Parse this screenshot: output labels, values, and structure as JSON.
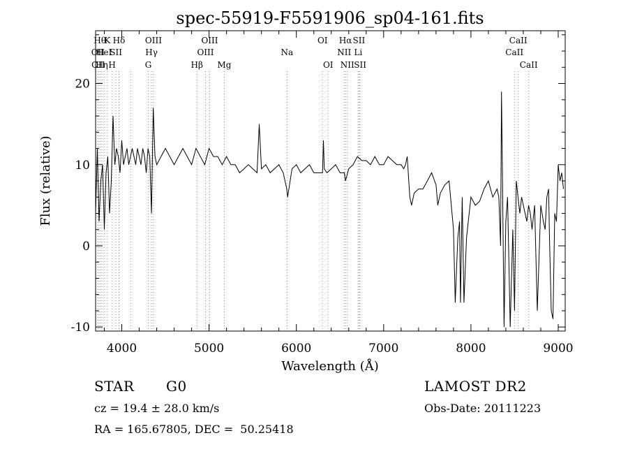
{
  "chart_data": {
    "type": "line",
    "title": "spec-55919-F5591906_sp04-161.fits",
    "xlabel": "Wavelength (Å)",
    "ylabel": "Flux (relative)",
    "xlim": [
      3700,
      9080
    ],
    "ylim": [
      -10.5,
      26.5
    ],
    "xticks": [
      4000,
      5000,
      6000,
      7000,
      8000,
      9000
    ],
    "yticks": [
      -10,
      0,
      10,
      20
    ],
    "grid": false,
    "line_color": "#000000",
    "marker_color": "#888888",
    "series": [
      {
        "x": [
          3700,
          3720,
          3740,
          3760,
          3780,
          3800,
          3820,
          3840,
          3860,
          3880,
          3900,
          3920,
          3940,
          3960,
          3980,
          4000,
          4020,
          4040,
          4060,
          4080,
          4100,
          4120,
          4140,
          4160,
          4180,
          4200,
          4220,
          4240,
          4260,
          4280,
          4300,
          4320,
          4340,
          4360,
          4380,
          4400,
          4450,
          4500,
          4550,
          4600,
          4650,
          4700,
          4750,
          4800,
          4850,
          4900,
          4950,
          5000,
          5050,
          5100,
          5150,
          5200,
          5250,
          5300,
          5350,
          5400,
          5450,
          5500,
          5550,
          5575,
          5600,
          5650,
          5700,
          5750,
          5800,
          5850,
          5890,
          5900,
          5950,
          6000,
          6050,
          6100,
          6150,
          6200,
          6250,
          6300,
          6310,
          6320,
          6350,
          6400,
          6450,
          6500,
          6550,
          6563,
          6600,
          6650,
          6700,
          6750,
          6800,
          6850,
          6900,
          6950,
          7000,
          7050,
          7100,
          7150,
          7200,
          7230,
          7250,
          7270,
          7300,
          7320,
          7350,
          7400,
          7450,
          7500,
          7550,
          7600,
          7620,
          7650,
          7700,
          7750,
          7800,
          7820,
          7850,
          7870,
          7880,
          7900,
          7920,
          7950,
          8000,
          8050,
          8100,
          8150,
          8200,
          8250,
          8300,
          8320,
          8340,
          8350,
          8360,
          8380,
          8400,
          8420,
          8450,
          8480,
          8500,
          8520,
          8540,
          8560,
          8580,
          8600,
          8620,
          8640,
          8660,
          8680,
          8700,
          8730,
          8760,
          8800,
          8830,
          8850,
          8870,
          8890,
          8900,
          8920,
          8940,
          8960,
          8980,
          9000,
          9020,
          9040,
          9060
        ],
        "y": [
          4,
          12,
          3,
          8,
          10,
          2,
          9,
          11,
          4,
          8,
          16,
          10,
          12,
          11,
          9,
          13,
          10,
          11,
          12,
          10,
          11,
          12,
          11,
          10,
          12,
          11,
          10,
          12,
          11,
          9,
          12,
          11,
          4,
          17,
          11,
          10,
          11,
          12,
          11,
          10,
          11,
          12,
          11,
          10,
          12,
          11,
          10,
          12,
          11,
          11,
          10,
          11,
          10,
          10,
          9,
          9.5,
          10,
          9.5,
          9,
          15,
          9.5,
          10,
          9,
          9.5,
          10,
          9,
          7,
          6,
          9.5,
          10,
          9,
          9.5,
          10,
          9,
          9,
          9,
          13,
          9.5,
          9,
          9.5,
          10,
          9,
          9,
          8,
          9.5,
          10,
          11,
          10.5,
          10.5,
          10,
          11,
          10,
          10,
          11,
          10.5,
          10,
          10,
          9.5,
          10,
          11,
          6,
          5,
          6.5,
          7,
          7,
          8,
          9,
          7.5,
          5,
          6.5,
          7.5,
          8,
          2,
          -7,
          1,
          3,
          -7,
          6,
          -7,
          1,
          6,
          5,
          5.5,
          7,
          8,
          6,
          7,
          6,
          0,
          19,
          10,
          -10,
          3,
          6,
          -10,
          2,
          -8,
          8,
          6,
          4,
          6,
          5,
          4,
          3,
          5,
          4,
          2,
          5,
          -8,
          5,
          3,
          2,
          6,
          7,
          1,
          -8,
          -9,
          4,
          3,
          10,
          8,
          9,
          7
        ]
      }
    ],
    "line_markers": [
      {
        "x": 3727,
        "label": "OII",
        "row": 2
      },
      {
        "x": 3730,
        "label": "OII",
        "row": 3
      },
      {
        "x": 3750,
        "label": "Hθ",
        "row": 1
      },
      {
        "x": 3771,
        "label": "Hη",
        "row": 3
      },
      {
        "x": 3798,
        "label": "HeI",
        "row": 2
      },
      {
        "x": 3835,
        "label": "K",
        "row": 1
      },
      {
        "x": 3889,
        "label": "H",
        "row": 3
      },
      {
        "x": 3933,
        "label": "SII",
        "row": 2
      },
      {
        "x": 3968,
        "label": "Hδ",
        "row": 1
      },
      {
        "x": 4102,
        "label": "",
        "row": 0
      },
      {
        "x": 4304,
        "label": "G",
        "row": 3
      },
      {
        "x": 4340,
        "label": "Hγ",
        "row": 2
      },
      {
        "x": 4363,
        "label": "OIII",
        "row": 1
      },
      {
        "x": 4861,
        "label": "Hβ",
        "row": 3
      },
      {
        "x": 4959,
        "label": "OIII",
        "row": 2
      },
      {
        "x": 5007,
        "label": "OIII",
        "row": 1
      },
      {
        "x": 5175,
        "label": "Mg",
        "row": 3
      },
      {
        "x": 5893,
        "label": "Na",
        "row": 2
      },
      {
        "x": 6300,
        "label": "OI",
        "row": 1
      },
      {
        "x": 6364,
        "label": "OI",
        "row": 3
      },
      {
        "x": 6548,
        "label": "NII",
        "row": 2
      },
      {
        "x": 6563,
        "label": "Hα",
        "row": 1
      },
      {
        "x": 6584,
        "label": "NII",
        "row": 3
      },
      {
        "x": 6708,
        "label": "Li",
        "row": 2
      },
      {
        "x": 6717,
        "label": "SII",
        "row": 1
      },
      {
        "x": 6731,
        "label": "SII",
        "row": 3
      },
      {
        "x": 8498,
        "label": "CaII",
        "row": 2
      },
      {
        "x": 8542,
        "label": "CaII",
        "row": 1
      },
      {
        "x": 8662,
        "label": "CaII",
        "row": 3
      }
    ]
  },
  "info": {
    "class": "STAR",
    "subclass": "G0",
    "survey": "LAMOST DR2",
    "redshift_line": "cz = 19.4 ± 28.0 km/s",
    "obs_date_line": "Obs-Date: 20111223",
    "coords_line": "RA = 165.67805, DEC =  50.25418"
  }
}
